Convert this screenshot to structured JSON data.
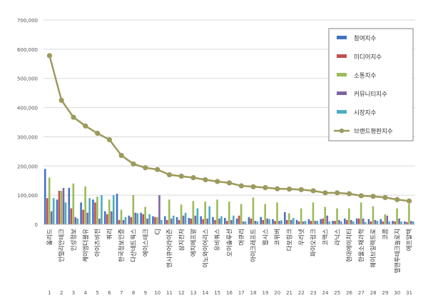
{
  "chart_data": {
    "type": "bar",
    "title": "",
    "xlabel": "",
    "ylabel": "",
    "ylim": [
      0,
      700000
    ],
    "yticks": [
      "0",
      "100,000",
      "200,000",
      "300,000",
      "400,000",
      "500,000",
      "600,000",
      "700,000"
    ],
    "grid": true,
    "legend_position": "top-right",
    "ranks": [
      "1",
      "2",
      "3",
      "4",
      "5",
      "6",
      "7",
      "8",
      "9",
      "10",
      "11",
      "12",
      "13",
      "14",
      "15",
      "16",
      "17",
      "18",
      "19",
      "20",
      "21",
      "22",
      "23",
      "24",
      "25",
      "26",
      "27",
      "28",
      "29",
      "30",
      "31"
    ],
    "categories": [
      "올리드",
      "인텔리안테크",
      "인성정보",
      "케이엠더블유",
      "아이즈비전",
      "쿼리",
      "한국정보인증",
      "다산네트웍스",
      "에이스테크",
      "CJ",
      "엔시큐어라이즌",
      "삼지전자",
      "에치에프알",
      "이노와이어리스",
      "유비쿼스",
      "오이솔루션",
      "머큐리",
      "아이크래프트",
      "웹시스",
      "코위버",
      "다보링크",
      "우리넷",
      "파이오링크",
      "코맥스",
      "라닉스",
      "현대에이치티",
      "한울소재과학",
      "웨이브일렉트로",
      "코콤",
      "엘앤투테크놀로지",
      "에프알텍"
    ],
    "series": [
      {
        "name": "참여지수",
        "color": "#4472c4",
        "kind": "bar",
        "values": [
          190000,
          85000,
          125000,
          75000,
          85000,
          45000,
          105000,
          30000,
          40000,
          28000,
          28000,
          25000,
          22000,
          28000,
          25000,
          22000,
          20000,
          25000,
          25000,
          18000,
          42000,
          15000,
          18000,
          18000,
          12000,
          20000,
          20000,
          18000,
          18000,
          12000,
          10000
        ]
      },
      {
        "name": "미디어지수",
        "color": "#c0504d",
        "kind": "bar",
        "values": [
          90000,
          115000,
          55000,
          50000,
          75000,
          35000,
          15000,
          25000,
          35000,
          25000,
          15000,
          15000,
          20000,
          18000,
          15000,
          12000,
          30000,
          20000,
          15000,
          12000,
          15000,
          10000,
          12000,
          20000,
          12000,
          15000,
          20000,
          10000,
          10000,
          10000,
          8000
        ]
      },
      {
        "name": "소통지수",
        "color": "#9bbb59",
        "kind": "bar",
        "values": [
          160000,
          115000,
          140000,
          130000,
          95000,
          85000,
          50000,
          100000,
          60000,
          25000,
          85000,
          68000,
          80000,
          78000,
          85000,
          78000,
          70000,
          92000,
          70000,
          75000,
          38000,
          55000,
          75000,
          60000,
          55000,
          55000,
          75000,
          62000,
          35000,
          55000,
          70000
        ]
      },
      {
        "name": "커뮤니티지수",
        "color": "#8064a2",
        "kind": "bar",
        "values": [
          45000,
          125000,
          25000,
          40000,
          20000,
          45000,
          15000,
          40000,
          20000,
          100000,
          20000,
          30000,
          30000,
          20000,
          20000,
          15000,
          10000,
          12000,
          20000,
          12000,
          15000,
          10000,
          12000,
          30000,
          15000,
          15000,
          20000,
          15000,
          30000,
          20000,
          12000
        ]
      },
      {
        "name": "시장지수",
        "color": "#4bacc6",
        "kind": "bar",
        "values": [
          90000,
          75000,
          20000,
          90000,
          100000,
          100000,
          25000,
          38000,
          35000,
          15000,
          30000,
          40000,
          55000,
          62000,
          28000,
          30000,
          10000,
          10000,
          18000,
          14000,
          22000,
          12000,
          12000,
          10000,
          10000,
          10000,
          8000,
          12000,
          10000,
          10000,
          10000
        ]
      },
      {
        "name": "브랜드평판지수",
        "color": "#9c9a5c",
        "kind": "line",
        "values": [
          578000,
          425000,
          367000,
          337000,
          312000,
          290000,
          236000,
          207000,
          194000,
          188000,
          170000,
          165000,
          160000,
          153000,
          147000,
          142000,
          132000,
          129000,
          126000,
          122000,
          121000,
          119000,
          115000,
          108000,
          108000,
          105000,
          98000,
          96000,
          92000,
          85000,
          80000
        ]
      }
    ]
  }
}
